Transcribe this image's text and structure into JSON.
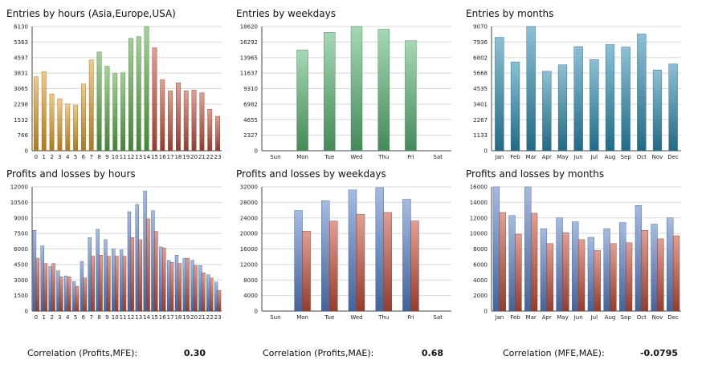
{
  "colors": {
    "orange": "#e5a02a",
    "green": "#5aae45",
    "red": "#c8503a",
    "mint": "#5cb877",
    "teal": "#2d8db1",
    "blue": "#5b84cc",
    "grid": "#d8d8d8",
    "axis": "#444444"
  },
  "chart_data": [
    {
      "id": "hours",
      "type": "bar",
      "title": "Entries by hours (Asia,Europe,USA)",
      "categories": [
        "0",
        "1",
        "2",
        "3",
        "4",
        "5",
        "6",
        "7",
        "8",
        "9",
        "10",
        "11",
        "12",
        "13",
        "14",
        "15",
        "16",
        "17",
        "18",
        "19",
        "20",
        "21",
        "22",
        "23"
      ],
      "ylim": [
        0,
        6130
      ],
      "yticks": [
        "0",
        "766",
        "1532",
        "2298",
        "3065",
        "3831",
        "4597",
        "5363",
        "6130"
      ],
      "values": [
        3650,
        3900,
        2800,
        2560,
        2300,
        2250,
        3300,
        4480,
        4870,
        4170,
        3820,
        3850,
        5540,
        5630,
        6130,
        5080,
        3500,
        2950,
        3350,
        2950,
        3000,
        2860,
        2050,
        1700
      ],
      "bar_colors": [
        "orange",
        "orange",
        "orange",
        "orange",
        "orange",
        "orange",
        "orange",
        "orange",
        "green",
        "green",
        "green",
        "green",
        "green",
        "green",
        "green",
        "red",
        "red",
        "red",
        "red",
        "red",
        "red",
        "red",
        "red",
        "red"
      ],
      "grid": true
    },
    {
      "id": "weekdays",
      "type": "bar",
      "title": "Entries by weekdays",
      "categories": [
        "Sun",
        "Mon",
        "Tue",
        "Wed",
        "Thu",
        "Fri",
        "Sat"
      ],
      "ylim": [
        0,
        18620
      ],
      "yticks": [
        "0",
        "2327",
        "4655",
        "6982",
        "9310",
        "11637",
        "13965",
        "16292",
        "18620"
      ],
      "values": [
        0,
        15100,
        17740,
        18620,
        18200,
        16500,
        0
      ],
      "bar_colors": [
        "mint",
        "mint",
        "mint",
        "mint",
        "mint",
        "mint",
        "mint"
      ],
      "grid": true
    },
    {
      "id": "months",
      "type": "bar",
      "title": "Entries by months",
      "categories": [
        "Jan",
        "Feb",
        "Mar",
        "Apr",
        "May",
        "Jun",
        "Jul",
        "Aug",
        "Sep",
        "Oct",
        "Nov",
        "Dec"
      ],
      "ylim": [
        0,
        9070
      ],
      "yticks": [
        "0",
        "1133",
        "2267",
        "3401",
        "4535",
        "5668",
        "6802",
        "7936",
        "9070"
      ],
      "values": [
        8280,
        6480,
        9070,
        5800,
        6270,
        7600,
        6650,
        7750,
        7570,
        8520,
        5900,
        6330
      ],
      "bar_colors": [
        "teal",
        "teal",
        "teal",
        "teal",
        "teal",
        "teal",
        "teal",
        "teal",
        "teal",
        "teal",
        "teal",
        "teal"
      ],
      "grid": true
    },
    {
      "id": "pl-hours",
      "type": "bar",
      "title": "Profits and losses by hours",
      "categories": [
        "0",
        "1",
        "2",
        "3",
        "4",
        "5",
        "6",
        "7",
        "8",
        "9",
        "10",
        "11",
        "12",
        "13",
        "14",
        "15",
        "16",
        "17",
        "18",
        "19",
        "20",
        "21",
        "22",
        "23"
      ],
      "ylim": [
        0,
        12000
      ],
      "yticks": [
        "0",
        "1500",
        "3000",
        "4500",
        "6000",
        "7500",
        "9000",
        "10500",
        "12000"
      ],
      "series": [
        {
          "color": "blue",
          "values": [
            7800,
            6300,
            4300,
            3900,
            3400,
            2850,
            4800,
            7100,
            7900,
            6900,
            6000,
            5900,
            9600,
            10300,
            11600,
            9700,
            6200,
            4900,
            5400,
            5100,
            4900,
            4400,
            3500,
            2800
          ]
        },
        {
          "color": "red",
          "values": [
            5100,
            4600,
            4600,
            3300,
            3300,
            2400,
            3200,
            5300,
            5400,
            5300,
            5300,
            5300,
            7100,
            6900,
            8900,
            7700,
            6100,
            4700,
            4600,
            5100,
            4400,
            3700,
            3200,
            2000
          ]
        }
      ],
      "grid": true
    },
    {
      "id": "pl-weekdays",
      "type": "bar",
      "title": "Profits and losses by weekdays",
      "categories": [
        "Sun",
        "Mon",
        "Tue",
        "Wed",
        "Thu",
        "Fri",
        "Sat"
      ],
      "ylim": [
        0,
        32000
      ],
      "yticks": [
        "0",
        "4000",
        "8000",
        "12000",
        "16000",
        "20000",
        "24000",
        "28000",
        "32000"
      ],
      "series": [
        {
          "color": "blue",
          "values": [
            0,
            25900,
            28400,
            31200,
            31800,
            28800,
            0
          ]
        },
        {
          "color": "red",
          "values": [
            0,
            20600,
            23200,
            24900,
            25400,
            23200,
            0
          ]
        }
      ],
      "grid": true
    },
    {
      "id": "pl-months",
      "type": "bar",
      "title": "Profits and losses by months",
      "categories": [
        "Jan",
        "Feb",
        "Mar",
        "Apr",
        "May",
        "Jun",
        "Jul",
        "Aug",
        "Sep",
        "Oct",
        "Nov",
        "Dec"
      ],
      "ylim": [
        0,
        16000
      ],
      "yticks": [
        "0",
        "2000",
        "4000",
        "6000",
        "8000",
        "10000",
        "12000",
        "14000",
        "16000"
      ],
      "series": [
        {
          "color": "blue",
          "values": [
            16000,
            12300,
            16000,
            10600,
            12000,
            11500,
            9500,
            10600,
            11400,
            13600,
            11200,
            12000
          ]
        },
        {
          "color": "red",
          "values": [
            12700,
            9900,
            12600,
            8700,
            10100,
            9200,
            7800,
            8700,
            8800,
            10400,
            9300,
            9700
          ]
        }
      ],
      "grid": true
    }
  ],
  "correlations": [
    {
      "label": "Correlation (Profits,MFE):",
      "value": "0.30"
    },
    {
      "label": "Correlation (Profits,MAE):",
      "value": "0.68"
    },
    {
      "label": "Correlation (MFE,MAE):",
      "value": "-0.0795"
    }
  ]
}
